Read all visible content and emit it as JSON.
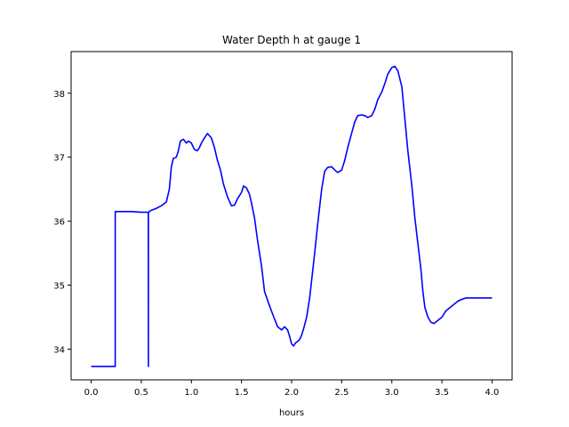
{
  "chart_data": {
    "type": "line",
    "title": "Water Depth h at gauge 1",
    "xlabel": "hours",
    "ylabel": "",
    "xlim": [
      -0.2,
      4.2
    ],
    "ylim": [
      33.52,
      38.65
    ],
    "xticks": [
      0.0,
      0.5,
      1.0,
      1.5,
      2.0,
      2.5,
      3.0,
      3.5,
      4.0
    ],
    "xtick_labels": [
      "0.0",
      "0.5",
      "1.0",
      "1.5",
      "2.0",
      "2.5",
      "3.0",
      "3.5",
      "4.0"
    ],
    "yticks": [
      34,
      35,
      36,
      37,
      38
    ],
    "ytick_labels": [
      "34",
      "35",
      "36",
      "37",
      "38"
    ],
    "grid": false,
    "series": [
      {
        "color": "#0000ff",
        "x": [
          0.0,
          0.24,
          0.24,
          0.3,
          0.4,
          0.5,
          0.57,
          0.571,
          0.571,
          0.58,
          0.6,
          0.65,
          0.7,
          0.75,
          0.78,
          0.8,
          0.82,
          0.85,
          0.87,
          0.89,
          0.92,
          0.95,
          0.97,
          1.0,
          1.03,
          1.06,
          1.08,
          1.1,
          1.13,
          1.16,
          1.2,
          1.23,
          1.26,
          1.29,
          1.32,
          1.36,
          1.4,
          1.43,
          1.46,
          1.5,
          1.52,
          1.55,
          1.58,
          1.6,
          1.63,
          1.66,
          1.7,
          1.73,
          1.77,
          1.81,
          1.86,
          1.9,
          1.93,
          1.96,
          1.98,
          2.0,
          2.02,
          2.04,
          2.06,
          2.08,
          2.1,
          2.12,
          2.15,
          2.18,
          2.2,
          2.23,
          2.26,
          2.3,
          2.33,
          2.36,
          2.4,
          2.43,
          2.46,
          2.5,
          2.53,
          2.56,
          2.6,
          2.63,
          2.66,
          2.7,
          2.73,
          2.76,
          2.8,
          2.83,
          2.86,
          2.9,
          2.93,
          2.96,
          3.0,
          3.03,
          3.06,
          3.1,
          3.13,
          3.16,
          3.2,
          3.23,
          3.26,
          3.29,
          3.31,
          3.33,
          3.36,
          3.39,
          3.42,
          3.46,
          3.5,
          3.54,
          3.58,
          3.62,
          3.66,
          3.7,
          3.74,
          3.78,
          3.8,
          3.82,
          3.84,
          3.86,
          3.88,
          3.89,
          3.9,
          3.92,
          3.94,
          3.96,
          3.98,
          4.0
        ],
        "y": [
          33.73,
          33.73,
          36.15,
          36.15,
          36.15,
          36.14,
          36.14,
          33.73,
          36.14,
          36.15,
          36.17,
          36.2,
          36.24,
          36.3,
          36.5,
          36.85,
          36.98,
          37.0,
          37.1,
          37.25,
          37.28,
          37.22,
          37.25,
          37.22,
          37.12,
          37.1,
          37.15,
          37.22,
          37.3,
          37.37,
          37.3,
          37.15,
          36.95,
          36.8,
          36.58,
          36.38,
          36.24,
          36.25,
          36.35,
          36.45,
          36.55,
          36.52,
          36.42,
          36.28,
          36.05,
          35.7,
          35.3,
          34.9,
          34.72,
          34.55,
          34.35,
          34.3,
          34.35,
          34.3,
          34.2,
          34.08,
          34.05,
          34.1,
          34.12,
          34.15,
          34.22,
          34.32,
          34.5,
          34.8,
          35.08,
          35.5,
          35.95,
          36.5,
          36.78,
          36.84,
          36.85,
          36.8,
          36.76,
          36.8,
          36.95,
          37.15,
          37.38,
          37.55,
          37.65,
          37.66,
          37.65,
          37.62,
          37.65,
          37.75,
          37.9,
          38.02,
          38.15,
          38.3,
          38.4,
          38.42,
          38.35,
          38.1,
          37.6,
          37.1,
          36.55,
          36.05,
          35.65,
          35.25,
          34.9,
          34.65,
          34.5,
          34.42,
          34.4,
          34.45,
          34.5,
          34.6,
          34.65,
          34.7,
          34.75,
          34.78,
          34.8,
          34.8,
          34.8,
          34.8,
          34.8,
          34.8,
          34.8,
          34.8,
          34.8,
          34.8,
          34.8,
          34.8,
          34.8,
          34.8
        ]
      }
    ]
  }
}
